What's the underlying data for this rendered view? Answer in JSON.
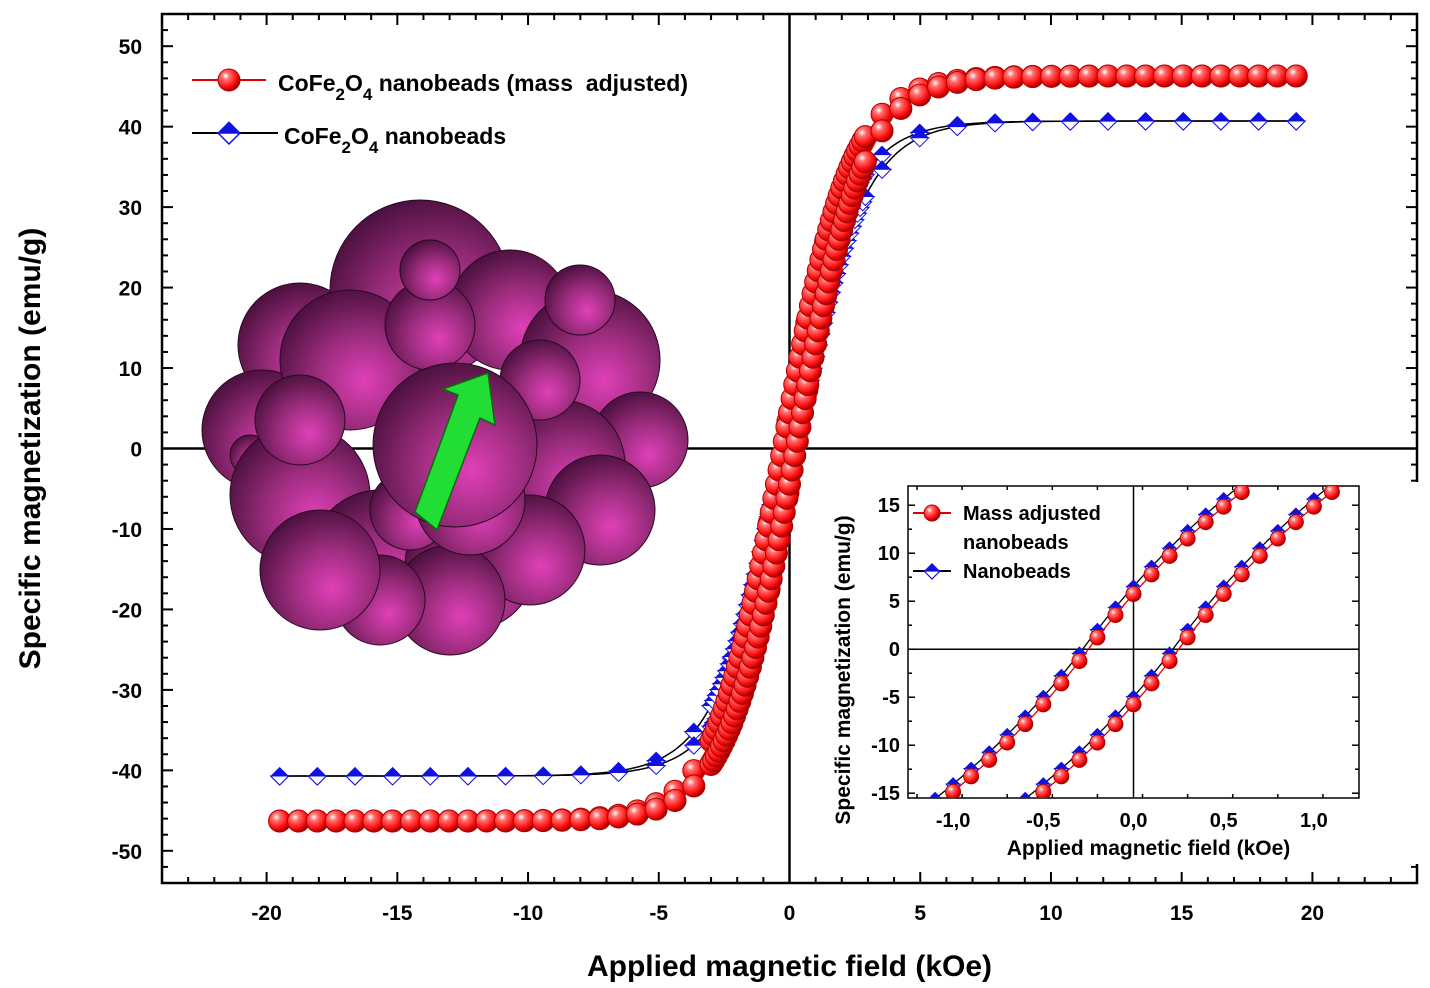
{
  "colors": {
    "series_main": "#ff1a1a",
    "series_main_line": "#e00000",
    "series_reference": "#1010e0",
    "series_reference_line": "#000000",
    "axis": "#000000",
    "bead": "#a0307e",
    "bead_dark": "#3a0a2e",
    "arrow": "#22dd33"
  },
  "chart_data": [
    {
      "type": "line",
      "role": "main",
      "xlabel": "Applied magnetic field (kOe)",
      "ylabel": "Specific magnetization (emu/g)",
      "xlim": [
        -24,
        24
      ],
      "ylim": [
        -54,
        54
      ],
      "x_ticks": [
        -20,
        -15,
        -10,
        -5,
        0,
        5,
        10,
        15,
        20
      ],
      "x_tick_labels": [
        "-20",
        "-15",
        "-10",
        "-5",
        "0",
        "5",
        "10",
        "15",
        "20"
      ],
      "y_ticks": [
        -50,
        -40,
        -30,
        -20,
        -10,
        0,
        10,
        20,
        30,
        40,
        50
      ],
      "y_tick_labels": [
        "-50",
        "-40",
        "-30",
        "-20",
        "-10",
        "0",
        "10",
        "20",
        "30",
        "40",
        "50"
      ],
      "zero_lines": true,
      "grid": false,
      "legend_position": "top-left",
      "series": [
        {
          "name_parts": [
            "CoFe",
            "2",
            "O",
            "4",
            " nanobeads (mass  adjusted)"
          ],
          "marker": "sphere",
          "Ms": 46.3,
          "Hc": 0.25,
          "Hk": 2.6,
          "x_min": -19.5,
          "x_max": 19.5,
          "marker_step": 0.4
        },
        {
          "name_parts": [
            "CoFe",
            "2",
            "O",
            "4",
            " nanobeads"
          ],
          "marker": "diamond",
          "Ms": 40.7,
          "Hc": 0.25,
          "Hk": 2.6,
          "x_min": -19.5,
          "x_max": 19.5,
          "marker_step": 0.6
        }
      ]
    },
    {
      "type": "line",
      "role": "inset",
      "xlabel": "Applied magnetic field (kOe)",
      "ylabel": "Specific magnetization (emu/g)",
      "xlim": [
        -1.25,
        1.25
      ],
      "ylim": [
        -15.5,
        17
      ],
      "x_ticks": [
        -1.0,
        -0.5,
        0.0,
        0.5,
        1.0
      ],
      "x_tick_labels": [
        "-1,0",
        "-0,5",
        "0,0",
        "0,5",
        "1,0"
      ],
      "y_ticks": [
        -15,
        -10,
        -5,
        0,
        5,
        10,
        15
      ],
      "y_tick_labels": [
        "-15",
        "-10",
        "-5",
        "0",
        "5",
        "10",
        "15"
      ],
      "zero_lines": true,
      "grid": false,
      "legend_position": "top-left",
      "series": [
        {
          "name_lines": [
            "Mass adjusted",
            "nanobeads"
          ],
          "marker": "sphere",
          "slope": 25.0,
          "Hc": 0.25,
          "marker_step": 0.1
        },
        {
          "name_lines": [
            "Nanobeads"
          ],
          "marker": "diamond",
          "slope": 25.0,
          "Hc": 0.25,
          "marker_step": 0.1
        }
      ]
    }
  ]
}
